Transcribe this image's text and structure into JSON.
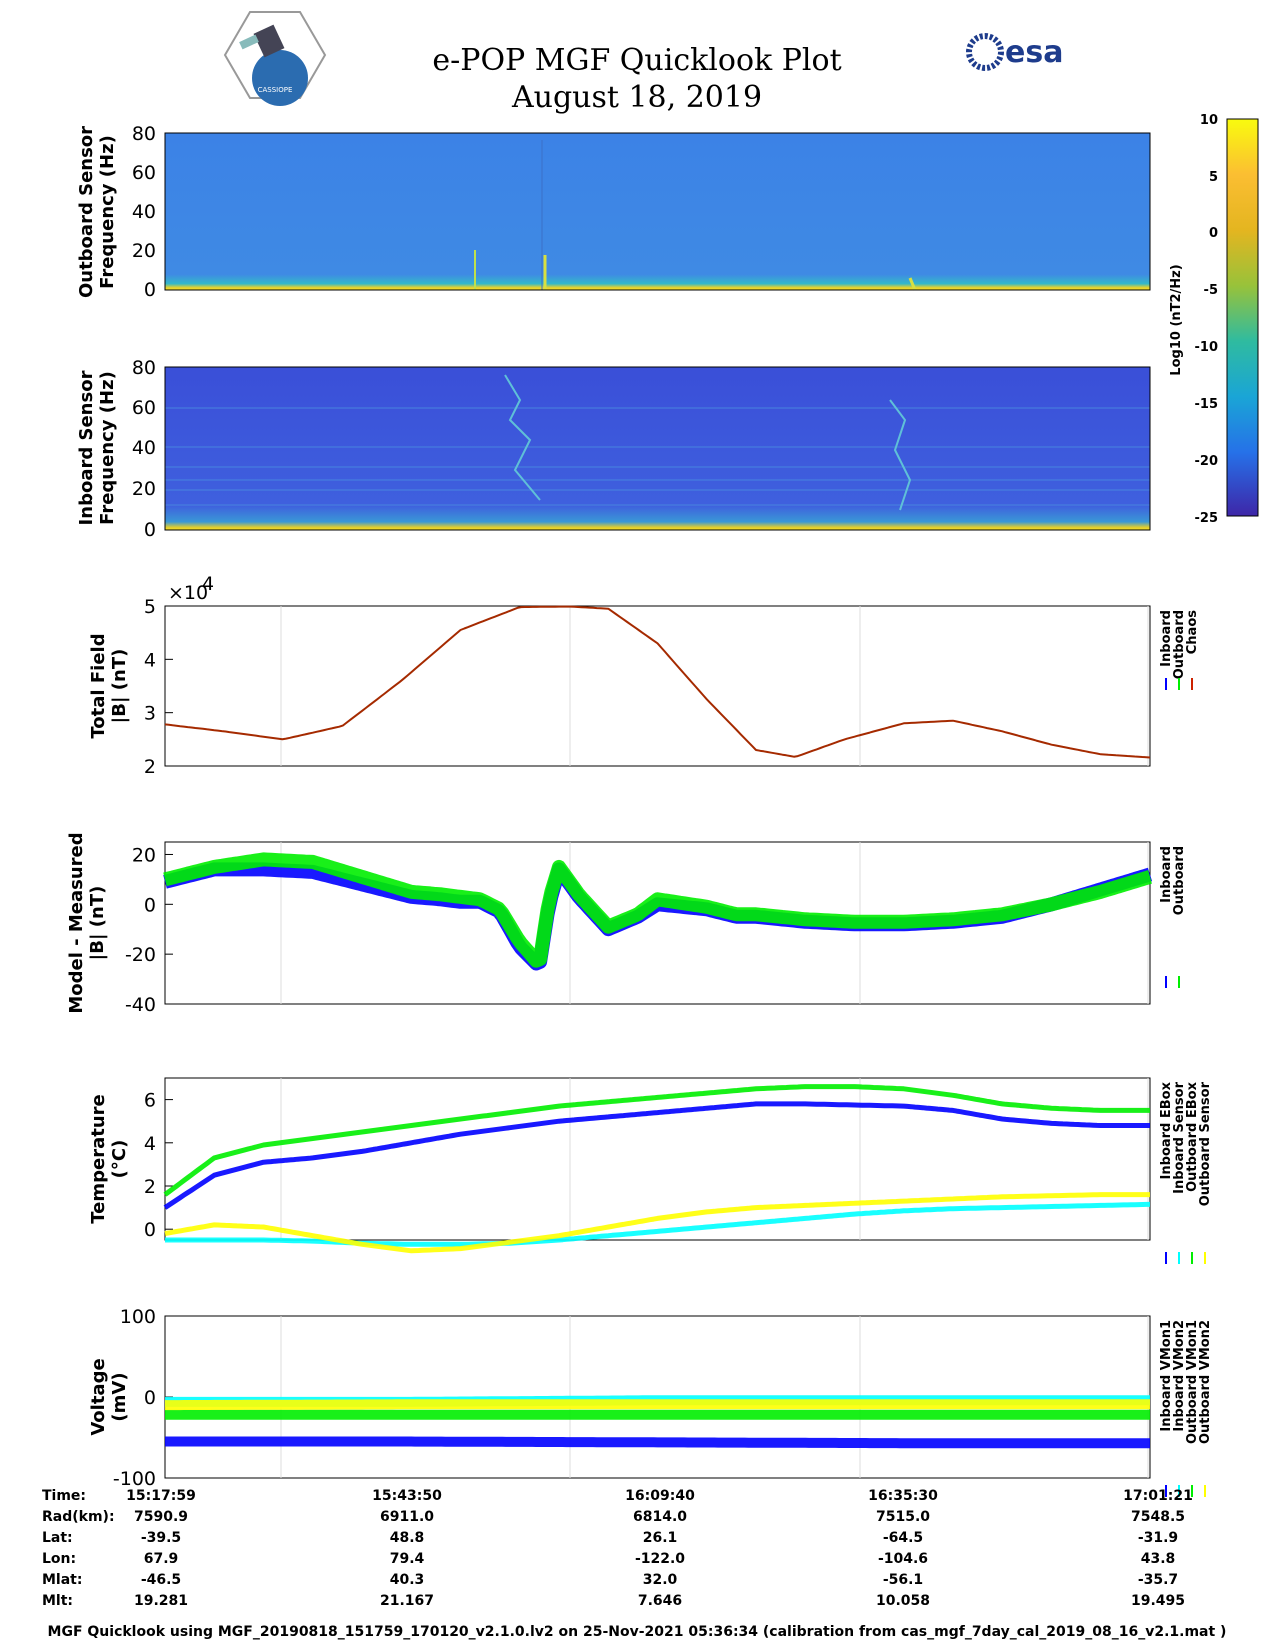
{
  "header": {
    "title_line1": "e-POP MGF Quicklook Plot",
    "title_line2": "August 18, 2019",
    "logo_right_text": "esa",
    "logo_left_text": "CASSIOPE"
  },
  "colors": {
    "inboard": "#0000ff",
    "outboard": "#00ee00",
    "chaos": "#cc2200",
    "yellow": "#ffff00",
    "cyan": "#00ffff",
    "brown": "#a52a00"
  },
  "colorbar": {
    "label": "Log10 (nT2/Hz)",
    "ticks": [
      "10",
      "5",
      "0",
      "-5",
      "-10",
      "-15",
      "-20",
      "-25"
    ]
  },
  "chart_data": [
    {
      "id": "spec-outboard",
      "type": "heatmap",
      "ylabel_line1": "Outboard Sensor",
      "ylabel_line2": "Frequency (Hz)",
      "ylim": [
        0,
        80
      ],
      "yticks": [
        "80",
        "60",
        "40",
        "20",
        "0"
      ]
    },
    {
      "id": "spec-inboard",
      "type": "heatmap",
      "ylabel_line1": "Inboard Sensor",
      "ylabel_line2": "Frequency (Hz)",
      "ylim": [
        0,
        80
      ],
      "yticks": [
        "80",
        "60",
        "40",
        "20",
        "0"
      ]
    },
    {
      "id": "total-field",
      "type": "line",
      "ylabel_line1": "Total Field",
      "ylabel_line2": "|B| (nT)",
      "ylim": [
        2,
        5
      ],
      "yticks": [
        "5",
        "4",
        "3",
        "2"
      ],
      "multiplier": "×10",
      "multiplier_exp": "4",
      "legend": [
        "Inboard",
        "Outboard",
        "Chaos"
      ],
      "x": [
        0,
        0.06,
        0.12,
        0.18,
        0.24,
        0.3,
        0.36,
        0.41,
        0.45,
        0.5,
        0.55,
        0.6,
        0.64,
        0.69,
        0.75,
        0.8,
        0.85,
        0.9,
        0.95,
        1.0
      ],
      "series": [
        {
          "name": "Total Field",
          "values": [
            2.78,
            2.65,
            2.5,
            2.75,
            3.6,
            4.55,
            4.98,
            4.99,
            4.95,
            4.3,
            3.25,
            2.3,
            2.17,
            2.5,
            2.8,
            2.85,
            2.65,
            2.4,
            2.22,
            2.16
          ]
        }
      ]
    },
    {
      "id": "model-measured",
      "type": "line",
      "ylabel_line1": "Model - Measured",
      "ylabel_line2": "|B| (nT)",
      "ylim": [
        -40,
        25
      ],
      "yticks": [
        "20",
        "0",
        "-20",
        "-40"
      ],
      "legend": [
        "Inboard",
        "Outboard"
      ],
      "x": [
        0,
        0.05,
        0.1,
        0.15,
        0.2,
        0.25,
        0.28,
        0.3,
        0.32,
        0.34,
        0.36,
        0.38,
        0.39,
        0.4,
        0.42,
        0.45,
        0.48,
        0.5,
        0.55,
        0.58,
        0.6,
        0.65,
        0.7,
        0.75,
        0.8,
        0.85,
        0.9,
        0.95,
        1.0
      ],
      "series": [
        {
          "name": "Inboard",
          "values": [
            9,
            14,
            14,
            13,
            8,
            3,
            2,
            1,
            1,
            -3,
            -17,
            -25,
            0,
            14,
            3,
            -10,
            -5,
            0,
            -2,
            -5,
            -5,
            -7,
            -8,
            -8,
            -7,
            -5,
            0,
            6,
            12
          ]
        },
        {
          "name": "Outboard",
          "values": [
            10,
            15,
            18,
            17,
            11,
            5,
            4,
            3,
            2,
            -2,
            -15,
            -24,
            2,
            15,
            4,
            -9,
            -4,
            2,
            -1,
            -4,
            -4,
            -6,
            -7,
            -7,
            -6,
            -4,
            0,
            5,
            11
          ]
        }
      ]
    },
    {
      "id": "temperature",
      "type": "line",
      "ylabel_line1": "Temperature",
      "ylabel_line2": "(°C)",
      "ylim": [
        -0.5,
        7
      ],
      "yticks": [
        "6",
        "4",
        "2",
        "0"
      ],
      "legend": [
        "Inboard EBox",
        "Inboard Sensor",
        "Outboard EBox",
        "Outboard Sensor"
      ],
      "x": [
        0,
        0.05,
        0.1,
        0.15,
        0.2,
        0.25,
        0.3,
        0.35,
        0.4,
        0.45,
        0.5,
        0.55,
        0.6,
        0.65,
        0.7,
        0.75,
        0.8,
        0.85,
        0.9,
        0.95,
        1.0
      ],
      "series": [
        {
          "name": "Inboard EBox",
          "values": [
            1.0,
            2.5,
            3.1,
            3.3,
            3.6,
            4.0,
            4.4,
            4.7,
            5.0,
            5.2,
            5.4,
            5.6,
            5.8,
            5.8,
            5.75,
            5.7,
            5.5,
            5.1,
            4.9,
            4.8,
            4.8
          ]
        },
        {
          "name": "Inboard Sensor",
          "values": [
            -0.5,
            -0.5,
            -0.5,
            -0.55,
            -0.65,
            -0.7,
            -0.7,
            -0.65,
            -0.5,
            -0.3,
            -0.1,
            0.1,
            0.3,
            0.5,
            0.7,
            0.85,
            0.95,
            1.0,
            1.05,
            1.1,
            1.15
          ]
        },
        {
          "name": "Outboard EBox",
          "values": [
            1.6,
            3.3,
            3.9,
            4.2,
            4.5,
            4.8,
            5.1,
            5.4,
            5.7,
            5.9,
            6.1,
            6.3,
            6.5,
            6.6,
            6.6,
            6.5,
            6.2,
            5.8,
            5.6,
            5.5,
            5.5
          ]
        },
        {
          "name": "Outboard Sensor",
          "values": [
            -0.2,
            0.2,
            0.1,
            -0.3,
            -0.7,
            -1.0,
            -0.9,
            -0.6,
            -0.3,
            0.1,
            0.5,
            0.8,
            1.0,
            1.1,
            1.2,
            1.3,
            1.4,
            1.5,
            1.55,
            1.6,
            1.6
          ]
        }
      ]
    },
    {
      "id": "voltage",
      "type": "line",
      "ylabel_line1": "Voltage",
      "ylabel_line2": "(mV)",
      "ylim": [
        -100,
        100
      ],
      "yticks": [
        "100",
        "0",
        "-100"
      ],
      "legend": [
        "Inboard VMon1",
        "Inboard VMon2",
        "Outboard VMon1",
        "Outboard VMon2"
      ],
      "x": [
        0,
        0.25,
        0.5,
        0.75,
        1.0
      ],
      "series": [
        {
          "name": "Inboard VMon1",
          "values": [
            -55,
            -55,
            -56,
            -57,
            -57
          ]
        },
        {
          "name": "Inboard VMon2",
          "values": [
            -6,
            -6,
            -4,
            -4,
            -4
          ]
        },
        {
          "name": "Outboard VMon1",
          "values": [
            -22,
            -22,
            -22,
            -22,
            -22
          ]
        },
        {
          "name": "Outboard VMon2",
          "values": [
            -10,
            -9,
            -9,
            -9,
            -9
          ]
        }
      ]
    }
  ],
  "table": {
    "row_labels": [
      "Time:",
      "Rad(km):",
      "Lat:",
      "Lon:",
      "Mlat:",
      "Mlt:"
    ],
    "columns": [
      [
        "15:17:59",
        "7590.9",
        "-39.5",
        "67.9",
        "-46.5",
        "19.281"
      ],
      [
        "15:43:50",
        "6911.0",
        "48.8",
        "79.4",
        "40.3",
        "21.167"
      ],
      [
        "16:09:40",
        "6814.0",
        "26.1",
        "-122.0",
        "32.0",
        "7.646"
      ],
      [
        "16:35:30",
        "7515.0",
        "-64.5",
        "-104.6",
        "-56.1",
        "10.058"
      ],
      [
        "17:01:21",
        "7548.5",
        "-31.9",
        "43.8",
        "-35.7",
        "19.495"
      ]
    ]
  },
  "footer": "MGF Quicklook using MGF_20190818_151759_170120_v2.1.0.lv2 on 25-Nov-2021 05:36:34 (calibration from cas_mgf_7day_cal_2019_08_16_v2.1.mat )"
}
